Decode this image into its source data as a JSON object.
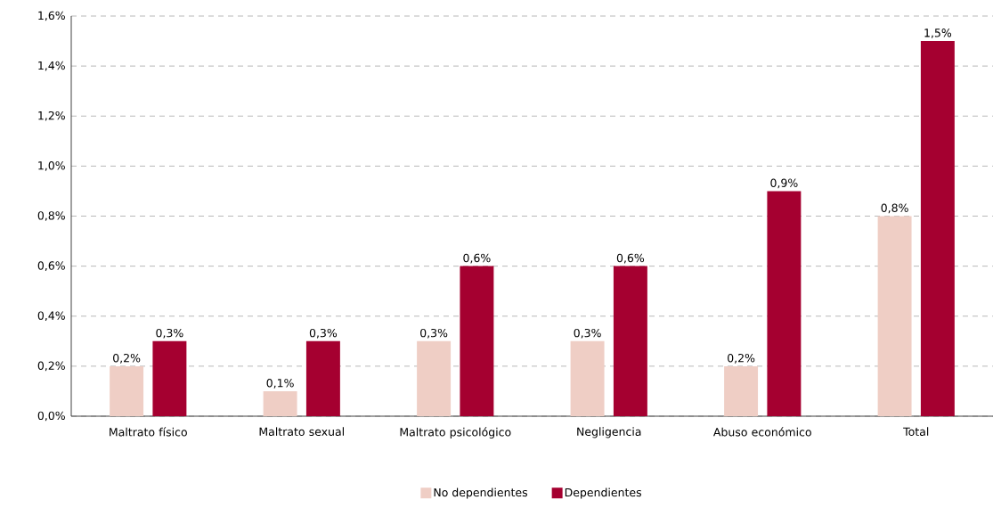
{
  "chart_data": {
    "type": "bar",
    "categories": [
      "Maltrato físico",
      "Maltrato sexual",
      "Maltrato psicológico",
      "Negligencia",
      "Abuso económico",
      "Total"
    ],
    "series": [
      {
        "name": "No dependientes",
        "color": "#efcec5",
        "values": [
          0.2,
          0.1,
          0.3,
          0.3,
          0.2,
          0.8
        ],
        "value_labels": [
          "0,2%",
          "0,1%",
          "0,3%",
          "0,3%",
          "0,2%",
          "0,8%"
        ]
      },
      {
        "name": "Dependientes",
        "color": "#a50030",
        "values": [
          0.3,
          0.3,
          0.6,
          0.6,
          0.9,
          1.5
        ],
        "value_labels": [
          "0,3%",
          "0,3%",
          "0,6%",
          "0,6%",
          "0,9%",
          "1,5%"
        ]
      }
    ],
    "ylim": [
      0,
      1.6
    ],
    "yticks": [
      {
        "value": 0,
        "label": "0,0%"
      },
      {
        "value": 0.2,
        "label": "0,2%"
      },
      {
        "value": 0.4,
        "label": "0,4%"
      },
      {
        "value": 0.6,
        "label": "0,6%"
      },
      {
        "value": 0.8,
        "label": "0,8%"
      },
      {
        "value": 1.0,
        "label": "1,0%"
      },
      {
        "value": 1.2,
        "label": "1,2%"
      },
      {
        "value": 1.4,
        "label": "1,4%"
      },
      {
        "value": 1.6,
        "label": "1,6%"
      }
    ],
    "grid": "y",
    "legend": "bottom"
  }
}
